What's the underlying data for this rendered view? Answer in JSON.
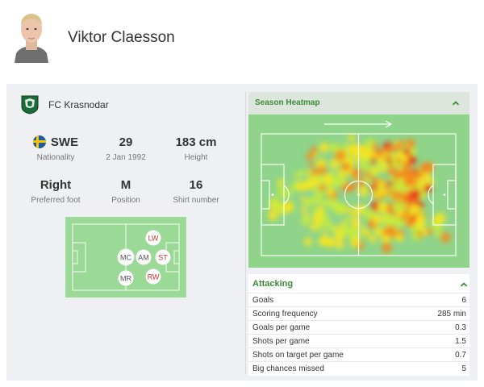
{
  "player": {
    "name": "Viktor Claesson"
  },
  "team": {
    "name": "FC Krasnodar"
  },
  "details": [
    {
      "key": "nationality",
      "value": "SWE",
      "label": "Nationality",
      "flag": "sweden-flag"
    },
    {
      "key": "age",
      "value": "29",
      "label": "2 Jan 1992"
    },
    {
      "key": "height",
      "value": "183 cm",
      "label": "Height"
    },
    {
      "key": "foot",
      "value": "Right",
      "label": "Preferred foot"
    },
    {
      "key": "position",
      "value": "M",
      "label": "Position"
    },
    {
      "key": "shirt",
      "value": "16",
      "label": "Shirt number"
    }
  ],
  "positions": [
    "LW",
    "MC",
    "AM",
    "ST",
    "MR",
    "RW"
  ],
  "heatmap": {
    "title": "Season Heatmap"
  },
  "attacking": {
    "title": "Attacking",
    "rows": [
      {
        "label": "Goals",
        "value": "6"
      },
      {
        "label": "Scoring frequency",
        "value": "285 min"
      },
      {
        "label": "Goals per game",
        "value": "0.3"
      },
      {
        "label": "Shots per game",
        "value": "1.5"
      },
      {
        "label": "Shots on target per game",
        "value": "0.7"
      },
      {
        "label": "Big chances missed",
        "value": "5"
      }
    ]
  },
  "colors": {
    "accent_green": "#3c8a3c",
    "pitch_green": "#8fd48a",
    "card_bg": "#eff0f3",
    "primary_position": "#d0302a",
    "secondary_position": "#555555"
  }
}
